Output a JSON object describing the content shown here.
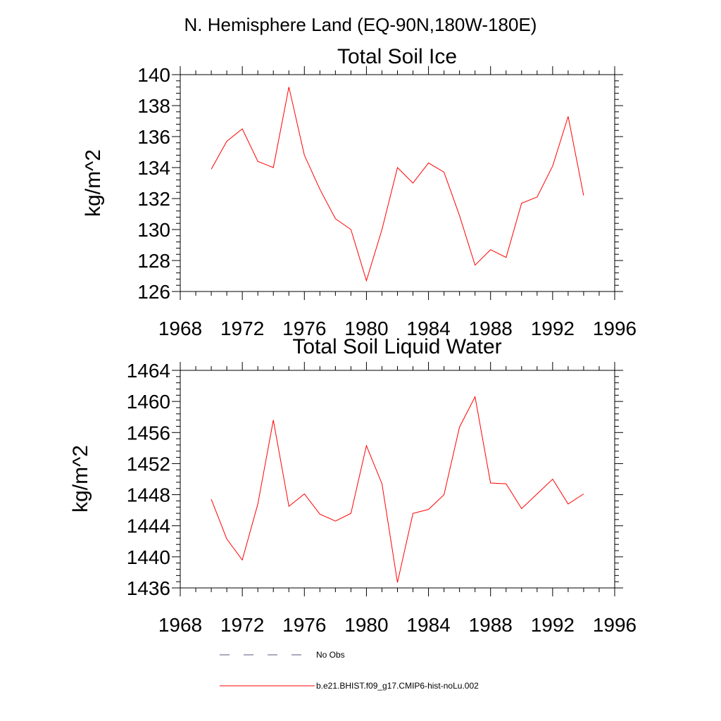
{
  "figure": {
    "suptitle": "N. Hemisphere Land (EQ-90N,180W-180E)"
  },
  "legend": {
    "items": [
      {
        "label": "No Obs",
        "style": "dashed",
        "color": "#555577"
      },
      {
        "label": "b.e21.BHIST.f09_g17.CMIP6-hist-noLu.002",
        "style": "solid",
        "color": "#ff0000"
      }
    ]
  },
  "chart_data": [
    {
      "type": "line",
      "title": "Total Soil Ice",
      "xlabel": "",
      "ylabel": "kg/m^2",
      "xlim": [
        1968,
        1996
      ],
      "ylim": [
        126,
        140
      ],
      "xticks": [
        1968,
        1972,
        1976,
        1980,
        1984,
        1988,
        1992,
        1996
      ],
      "yticks": [
        126,
        128,
        130,
        132,
        134,
        136,
        138,
        140
      ],
      "ytick_labels": [
        "126",
        "128",
        "130",
        "132",
        "134",
        "136",
        "138",
        "140"
      ],
      "grid": false,
      "series": [
        {
          "name": "b.e21.BHIST.f09_g17.CMIP6-hist-noLu.002",
          "color": "#ff0000",
          "x": [
            1970,
            1971,
            1972,
            1973,
            1974,
            1975,
            1976,
            1977,
            1978,
            1979,
            1980,
            1981,
            1982,
            1983,
            1984,
            1985,
            1986,
            1987,
            1988,
            1989,
            1990,
            1991,
            1992,
            1993,
            1994
          ],
          "y": [
            133.9,
            135.7,
            136.5,
            134.4,
            134.0,
            139.2,
            134.8,
            132.6,
            130.7,
            130.0,
            126.7,
            130.0,
            134.0,
            133.0,
            134.3,
            133.7,
            130.9,
            127.7,
            128.7,
            128.2,
            131.7,
            132.1,
            134.1,
            137.3,
            132.2
          ]
        }
      ]
    },
    {
      "type": "line",
      "title": "Total Soil Liquid Water",
      "xlabel": "",
      "ylabel": "kg/m^2",
      "xlim": [
        1968,
        1996
      ],
      "ylim": [
        1436,
        1464
      ],
      "xticks": [
        1968,
        1972,
        1976,
        1980,
        1984,
        1988,
        1992,
        1996
      ],
      "yticks": [
        1436,
        1440,
        1444,
        1448,
        1452,
        1456,
        1460,
        1464
      ],
      "ytick_labels": [
        "1436",
        "1440",
        "1444",
        "1448",
        "1452",
        "1456",
        "1460",
        "1464"
      ],
      "grid": false,
      "series": [
        {
          "name": "b.e21.BHIST.f09_g17.CMIP6-hist-noLu.002",
          "color": "#ff0000",
          "x": [
            1970,
            1971,
            1972,
            1973,
            1974,
            1975,
            1976,
            1977,
            1978,
            1979,
            1980,
            1981,
            1982,
            1983,
            1984,
            1985,
            1986,
            1987,
            1988,
            1989,
            1990,
            1991,
            1992,
            1993,
            1994
          ],
          "y": [
            1447.4,
            1442.3,
            1439.6,
            1446.8,
            1457.6,
            1446.5,
            1448.1,
            1445.5,
            1444.6,
            1445.6,
            1454.3,
            1449.4,
            1436.7,
            1445.6,
            1446.1,
            1448.0,
            1456.7,
            1460.6,
            1449.5,
            1449.4,
            1446.2,
            1448.1,
            1450.0,
            1446.8,
            1448.1
          ]
        }
      ]
    }
  ]
}
